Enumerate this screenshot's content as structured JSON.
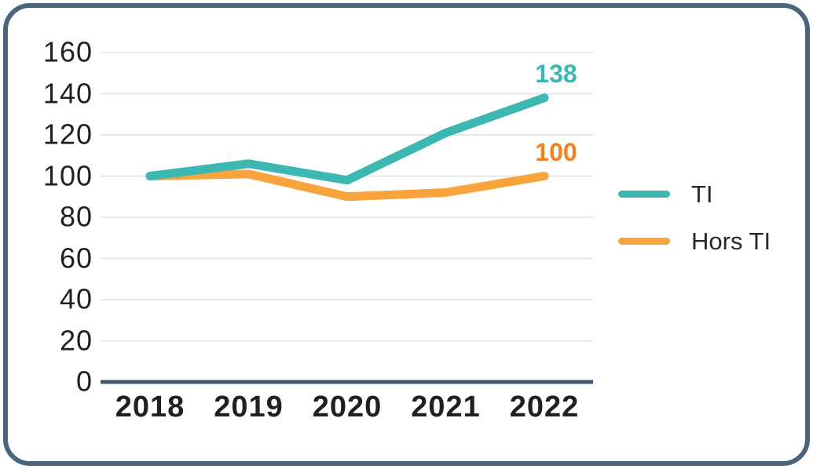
{
  "frame": {
    "border_color": "#4a647e",
    "background": "#ffffff"
  },
  "chart_data": {
    "type": "line",
    "title": "",
    "xlabel": "",
    "ylabel": "",
    "categories": [
      "2018",
      "2019",
      "2020",
      "2021",
      "2022"
    ],
    "series": [
      {
        "name": "TI",
        "color": "#3cb7b1",
        "values": [
          100,
          106,
          98,
          121,
          138
        ],
        "end_label": "138",
        "end_label_color": "#3cb7b1"
      },
      {
        "name": "Hors TI",
        "color": "#f9a33c",
        "values": [
          100,
          101,
          90,
          92,
          100
        ],
        "end_label": "100",
        "end_label_color": "#f4811f"
      }
    ],
    "ylim": [
      0,
      160
    ],
    "ytick_step": 20,
    "yticks": [
      160,
      140,
      120,
      100,
      80,
      60,
      40,
      20,
      0
    ],
    "grid": true,
    "gridline_color": "#e4e9e6",
    "axis_color": "#43566c",
    "tick_label_color": "#1e2124",
    "legend": {
      "position": "right",
      "entries": [
        "TI",
        "Hors TI"
      ]
    }
  }
}
